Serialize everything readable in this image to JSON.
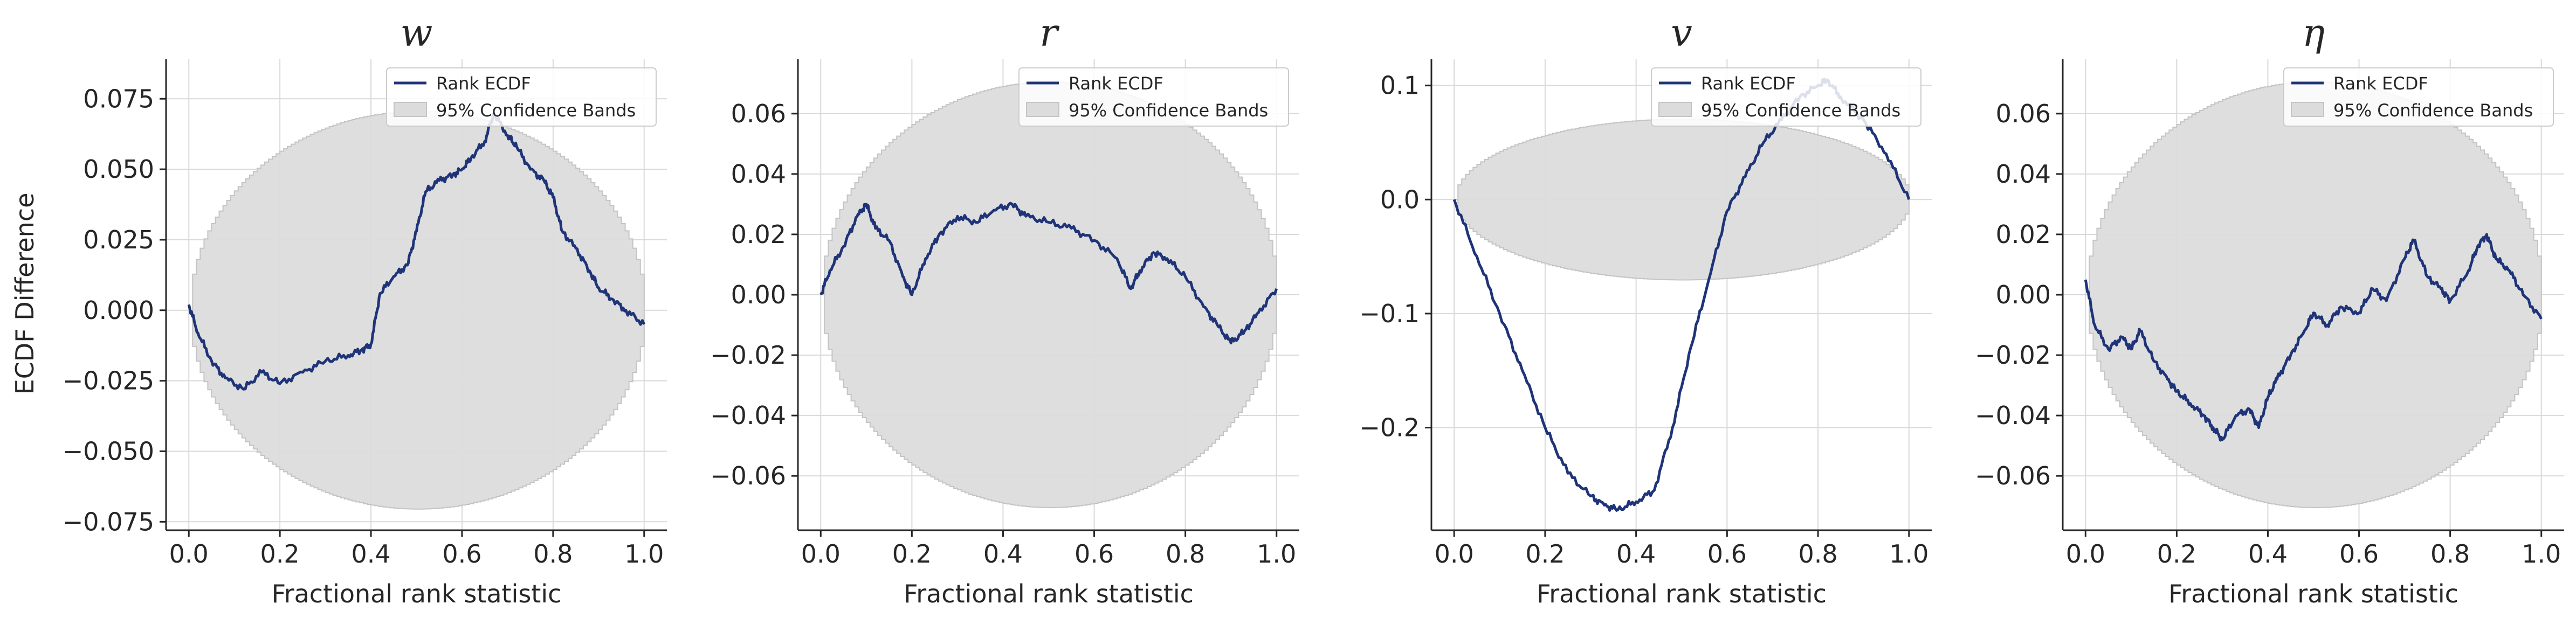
{
  "colors": {
    "line": "#1f3478",
    "band": "#dcdcdc",
    "bandEdge": "#c4c4c4",
    "grid": "#d9d9d9",
    "axis": "#262626"
  },
  "chart_data": [
    {
      "type": "line",
      "title": "w",
      "xlabel": "Fractional rank statistic",
      "ylabel": "ECDF Difference",
      "xlim": [
        -0.05,
        1.05
      ],
      "ylim": [
        -0.078,
        0.089
      ],
      "xticks": [
        0.0,
        0.2,
        0.4,
        0.6,
        0.8,
        1.0
      ],
      "xtick_labels": [
        "0.0",
        "0.2",
        "0.4",
        "0.6",
        "0.8",
        "1.0"
      ],
      "yticks": [
        -0.075,
        -0.05,
        -0.025,
        0.0,
        0.025,
        0.05,
        0.075
      ],
      "ytick_labels": [
        "−0.075",
        "−0.050",
        "−0.025",
        "0.000",
        "0.025",
        "0.050",
        "0.075"
      ],
      "band": {
        "center": 0.0,
        "amplitude": 0.0705
      },
      "legend": {
        "position": "top-right",
        "entries": [
          "Rank ECDF",
          "95% Confidence Bands"
        ]
      },
      "series": [
        {
          "name": "Rank ECDF",
          "x": [
            0.0,
            0.02,
            0.05,
            0.08,
            0.12,
            0.16,
            0.2,
            0.25,
            0.3,
            0.35,
            0.38,
            0.4,
            0.42,
            0.45,
            0.48,
            0.5,
            0.52,
            0.55,
            0.58,
            0.6,
            0.62,
            0.65,
            0.67,
            0.7,
            0.72,
            0.75,
            0.78,
            0.8,
            0.82,
            0.85,
            0.88,
            0.9,
            0.93,
            0.96,
            1.0
          ],
          "y": [
            0.002,
            -0.008,
            -0.018,
            -0.024,
            -0.028,
            -0.022,
            -0.026,
            -0.022,
            -0.018,
            -0.016,
            -0.014,
            -0.012,
            0.006,
            0.012,
            0.016,
            0.028,
            0.042,
            0.046,
            0.048,
            0.05,
            0.054,
            0.06,
            0.07,
            0.062,
            0.058,
            0.05,
            0.046,
            0.04,
            0.028,
            0.022,
            0.014,
            0.008,
            0.004,
            0.0,
            -0.005
          ]
        }
      ]
    },
    {
      "type": "line",
      "title": "r",
      "xlabel": "Fractional rank statistic",
      "ylabel": "",
      "xlim": [
        -0.05,
        1.05
      ],
      "ylim": [
        -0.078,
        0.078
      ],
      "xticks": [
        0.0,
        0.2,
        0.4,
        0.6,
        0.8,
        1.0
      ],
      "xtick_labels": [
        "0.0",
        "0.2",
        "0.4",
        "0.6",
        "0.8",
        "1.0"
      ],
      "yticks": [
        -0.06,
        -0.04,
        -0.02,
        0.0,
        0.02,
        0.04,
        0.06
      ],
      "ytick_labels": [
        "−0.06",
        "−0.04",
        "−0.02",
        "0.00",
        "0.02",
        "0.04",
        "0.06"
      ],
      "band": {
        "center": 0.0,
        "amplitude": 0.0705
      },
      "legend": {
        "position": "top-right",
        "entries": [
          "Rank ECDF",
          "95% Confidence Bands"
        ]
      },
      "series": [
        {
          "name": "Rank ECDF",
          "x": [
            0.0,
            0.02,
            0.05,
            0.08,
            0.1,
            0.12,
            0.15,
            0.18,
            0.2,
            0.23,
            0.26,
            0.3,
            0.34,
            0.38,
            0.42,
            0.45,
            0.5,
            0.55,
            0.6,
            0.65,
            0.68,
            0.7,
            0.73,
            0.76,
            0.8,
            0.84,
            0.87,
            0.9,
            0.93,
            0.96,
            1.0
          ],
          "y": [
            0.0,
            0.008,
            0.016,
            0.026,
            0.03,
            0.022,
            0.018,
            0.006,
            0.0,
            0.012,
            0.02,
            0.026,
            0.024,
            0.028,
            0.03,
            0.026,
            0.024,
            0.022,
            0.018,
            0.012,
            0.002,
            0.008,
            0.014,
            0.012,
            0.006,
            -0.004,
            -0.01,
            -0.016,
            -0.012,
            -0.006,
            0.002
          ]
        }
      ]
    },
    {
      "type": "line",
      "title": "v",
      "xlabel": "Fractional rank statistic",
      "ylabel": "",
      "xlim": [
        -0.05,
        1.05
      ],
      "ylim": [
        -0.29,
        0.123
      ],
      "xticks": [
        0.0,
        0.2,
        0.4,
        0.6,
        0.8,
        1.0
      ],
      "xtick_labels": [
        "0.0",
        "0.2",
        "0.4",
        "0.6",
        "0.8",
        "1.0"
      ],
      "yticks": [
        -0.2,
        -0.1,
        0.0,
        0.1
      ],
      "ytick_labels": [
        "−0.2",
        "−0.1",
        "0.0",
        "0.1"
      ],
      "band": {
        "center": 0.0,
        "amplitude": 0.0705
      },
      "legend": {
        "position": "top-right",
        "entries": [
          "Rank ECDF",
          "95% Confidence Bands"
        ]
      },
      "series": [
        {
          "name": "Rank ECDF",
          "x": [
            0.0,
            0.05,
            0.1,
            0.15,
            0.2,
            0.25,
            0.3,
            0.33,
            0.36,
            0.4,
            0.44,
            0.48,
            0.52,
            0.56,
            0.6,
            0.64,
            0.68,
            0.72,
            0.76,
            0.8,
            0.82,
            0.85,
            0.9,
            0.95,
            1.0
          ],
          "y": [
            0.0,
            -0.05,
            -0.1,
            -0.15,
            -0.2,
            -0.24,
            -0.26,
            -0.268,
            -0.272,
            -0.265,
            -0.255,
            -0.2,
            -0.13,
            -0.07,
            -0.01,
            0.02,
            0.05,
            0.07,
            0.09,
            0.1,
            0.105,
            0.09,
            0.07,
            0.04,
            0.0
          ]
        }
      ]
    },
    {
      "type": "line",
      "title": "η",
      "xlabel": "Fractional rank statistic",
      "ylabel": "",
      "xlim": [
        -0.05,
        1.05
      ],
      "ylim": [
        -0.078,
        0.078
      ],
      "xticks": [
        0.0,
        0.2,
        0.4,
        0.6,
        0.8,
        1.0
      ],
      "xtick_labels": [
        "0.0",
        "0.2",
        "0.4",
        "0.6",
        "0.8",
        "1.0"
      ],
      "yticks": [
        -0.06,
        -0.04,
        -0.02,
        0.0,
        0.02,
        0.04,
        0.06
      ],
      "ytick_labels": [
        "−0.06",
        "−0.04",
        "−0.02",
        "0.00",
        "0.02",
        "0.04",
        "0.06"
      ],
      "band": {
        "center": 0.0,
        "amplitude": 0.0705
      },
      "legend": {
        "position": "top-right",
        "entries": [
          "Rank ECDF",
          "95% Confidence Bands"
        ]
      },
      "series": [
        {
          "name": "Rank ECDF",
          "x": [
            0.0,
            0.02,
            0.05,
            0.08,
            0.1,
            0.12,
            0.15,
            0.18,
            0.2,
            0.23,
            0.26,
            0.28,
            0.3,
            0.33,
            0.36,
            0.38,
            0.4,
            0.42,
            0.45,
            0.48,
            0.5,
            0.53,
            0.56,
            0.6,
            0.63,
            0.66,
            0.7,
            0.72,
            0.75,
            0.78,
            0.8,
            0.84,
            0.86,
            0.88,
            0.9,
            0.93,
            0.96,
            1.0
          ],
          "y": [
            0.005,
            -0.01,
            -0.018,
            -0.014,
            -0.018,
            -0.012,
            -0.022,
            -0.028,
            -0.032,
            -0.036,
            -0.04,
            -0.044,
            -0.048,
            -0.04,
            -0.038,
            -0.044,
            -0.034,
            -0.028,
            -0.02,
            -0.012,
            -0.006,
            -0.01,
            -0.004,
            -0.006,
            0.002,
            -0.002,
            0.012,
            0.018,
            0.006,
            0.002,
            -0.002,
            0.008,
            0.016,
            0.02,
            0.012,
            0.008,
            0.0,
            -0.008
          ]
        }
      ]
    }
  ]
}
